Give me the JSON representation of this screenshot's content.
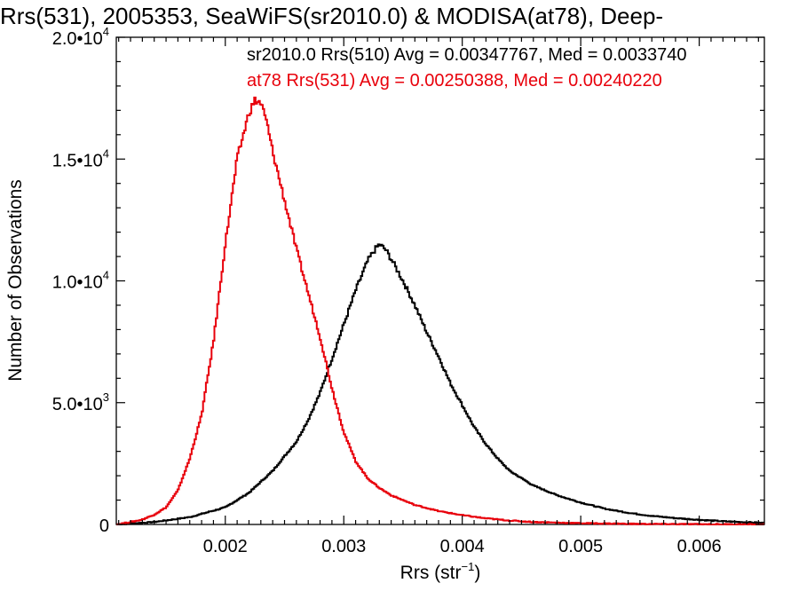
{
  "chart_data": {
    "type": "line",
    "title": "Rrs(531), 2005353, SeaWiFS(sr2010.0) & MODISA(at78), Deep-",
    "xlabel": {
      "base": "Rrs (str",
      "sup": "−1",
      "tail": ")"
    },
    "ylabel": "Number of Observations",
    "xlim": [
      0.00108,
      0.00655
    ],
    "ylim": [
      0,
      20000
    ],
    "x_ticks": [
      0.002,
      0.003,
      0.004,
      0.005,
      0.006
    ],
    "x_tick_labels": [
      "0.002",
      "0.003",
      "0.004",
      "0.005",
      "0.006"
    ],
    "y_ticks": [
      0,
      5000,
      10000,
      15000,
      20000
    ],
    "y_tick_labels": [
      {
        "mant": "0",
        "exp": ""
      },
      {
        "mant": "5.0•10",
        "exp": "3"
      },
      {
        "mant": "1.0•10",
        "exp": "4"
      },
      {
        "mant": "1.5•10",
        "exp": "4"
      },
      {
        "mant": "2.0•10",
        "exp": "4"
      }
    ],
    "grid": false,
    "legend_position": "top",
    "series": [
      {
        "legend": "sr2010.0 Rrs(510) Avg = 0.00347767, Med = 0.0033740",
        "color": "#000000",
        "step": "histogram",
        "x": [
          0.00108,
          0.0014,
          0.0017,
          0.002,
          0.0022,
          0.0024,
          0.0026,
          0.0027,
          0.0028,
          0.0029,
          0.003,
          0.0031,
          0.0032,
          0.00325,
          0.0033,
          0.00335,
          0.0034,
          0.0035,
          0.0036,
          0.0037,
          0.0038,
          0.0039,
          0.004,
          0.0041,
          0.0042,
          0.0043,
          0.0044,
          0.0046,
          0.0048,
          0.005,
          0.0052,
          0.0054,
          0.0056,
          0.0058,
          0.006,
          0.0062,
          0.0064,
          0.00655
        ],
        "y": [
          0,
          100,
          300,
          700,
          1300,
          2200,
          3400,
          4300,
          5400,
          6800,
          8200,
          9600,
          10800,
          11200,
          11500,
          11300,
          10900,
          10000,
          9000,
          7900,
          6900,
          5800,
          4900,
          4000,
          3300,
          2700,
          2200,
          1600,
          1200,
          900,
          650,
          480,
          350,
          260,
          190,
          130,
          90,
          60
        ]
      },
      {
        "legend": "at78 Rrs(531) Avg = 0.00250388, Med = 0.00240220",
        "color": "#e8000b",
        "step": "histogram",
        "x": [
          0.00108,
          0.0012,
          0.0013,
          0.0014,
          0.0015,
          0.0016,
          0.0017,
          0.0018,
          0.0019,
          0.002,
          0.0021,
          0.0022,
          0.00225,
          0.0023,
          0.00235,
          0.0024,
          0.0025,
          0.0026,
          0.0027,
          0.0028,
          0.0029,
          0.003,
          0.0031,
          0.0032,
          0.0033,
          0.0034,
          0.0035,
          0.0036,
          0.0038,
          0.004,
          0.0042,
          0.0044,
          0.0046,
          0.005,
          0.0055,
          0.006,
          0.00655
        ],
        "y": [
          0,
          100,
          200,
          400,
          700,
          1400,
          2700,
          4500,
          7500,
          11500,
          15000,
          16900,
          17400,
          17300,
          16500,
          15300,
          13300,
          11300,
          9500,
          7700,
          5600,
          3800,
          2600,
          1900,
          1500,
          1200,
          1000,
          800,
          550,
          380,
          250,
          160,
          100,
          50,
          20,
          10,
          0
        ]
      }
    ]
  }
}
